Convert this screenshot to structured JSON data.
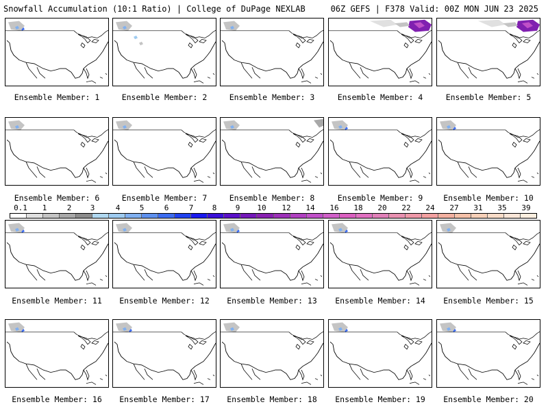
{
  "header": {
    "left_title": "Snowfall Accumulation (10:1 Ratio) | College of DuPage NEXLAB",
    "right_title": "06Z GEFS | F378 Valid: 00Z MON JUN 23 2025"
  },
  "members": [
    {
      "label": "Ensemble Member: 1",
      "snow": [
        "northwest-heavy",
        "northwest-light"
      ]
    },
    {
      "label": "Ensemble Member: 2",
      "snow": [
        "northwest-light",
        "rockies-light"
      ]
    },
    {
      "label": "Ensemble Member: 3",
      "snow": [
        "northwest-light"
      ]
    },
    {
      "label": "Ensemble Member: 4",
      "snow": [
        "northeast-canada-heavy",
        "canada-light"
      ]
    },
    {
      "label": "Ensemble Member: 5",
      "snow": [
        "northeast-canada-heavy",
        "canada-light"
      ]
    },
    {
      "label": "Ensemble Member: 6",
      "snow": [
        "northwest-light"
      ]
    },
    {
      "label": "Ensemble Member: 7",
      "snow": [
        "northwest-light"
      ]
    },
    {
      "label": "Ensemble Member: 8",
      "snow": [
        "northwest-light",
        "northeast-canada-light"
      ]
    },
    {
      "label": "Ensemble Member: 9",
      "snow": [
        "northwest-heavy",
        "northwest-light"
      ]
    },
    {
      "label": "Ensemble Member: 10",
      "snow": [
        "northwest-heavy",
        "northwest-light"
      ]
    },
    {
      "label": "Ensemble Member: 11",
      "snow": [
        "northwest-heavy",
        "northwest-light"
      ]
    },
    {
      "label": "Ensemble Member: 12",
      "snow": [
        "northwest-light"
      ]
    },
    {
      "label": "Ensemble Member: 13",
      "snow": [
        "northwest-heavy",
        "northwest-light"
      ]
    },
    {
      "label": "Ensemble Member: 14",
      "snow": [
        "northwest-heavy",
        "northwest-light"
      ]
    },
    {
      "label": "Ensemble Member: 15",
      "snow": [
        "northwest-light"
      ]
    },
    {
      "label": "Ensemble Member: 16",
      "snow": [
        "northwest-heavy",
        "northwest-light"
      ]
    },
    {
      "label": "Ensemble Member: 17",
      "snow": [
        "northwest-heavy",
        "northwest-light"
      ]
    },
    {
      "label": "Ensemble Member: 18",
      "snow": [
        "northwest-light"
      ]
    },
    {
      "label": "Ensemble Member: 19",
      "snow": [
        "northwest-heavy",
        "northwest-light"
      ]
    },
    {
      "label": "Ensemble Member: 20",
      "snow": [
        "northwest-heavy",
        "northwest-light"
      ]
    }
  ],
  "colorbar": {
    "labels": [
      "0.1",
      "1",
      "2",
      "3",
      "4",
      "5",
      "6",
      "7",
      "8",
      "9",
      "10",
      "12",
      "14",
      "16",
      "18",
      "20",
      "22",
      "24",
      "27",
      "31",
      "35",
      "39"
    ],
    "colors": [
      "#ffffff",
      "#e0e0e0",
      "#c4c4c4",
      "#a8a8a8",
      "#8c8c8c",
      "#b0d8f0",
      "#9ecbf0",
      "#80b0f0",
      "#5e90ee",
      "#3c6cf0",
      "#2042ee",
      "#1a1aee",
      "#3a10d8",
      "#5a10c8",
      "#7418b8",
      "#8820b0",
      "#9c30b8",
      "#b040c0",
      "#c050c8",
      "#d060c8",
      "#da60c0",
      "#e070c0",
      "#e080b8",
      "#e890b0",
      "#ee98a8",
      "#f2a0a0",
      "#f2b0a0",
      "#f4c0a8",
      "#f6d0b8",
      "#f8dcc8",
      "#fae6d8",
      "#fcefe0"
    ]
  }
}
